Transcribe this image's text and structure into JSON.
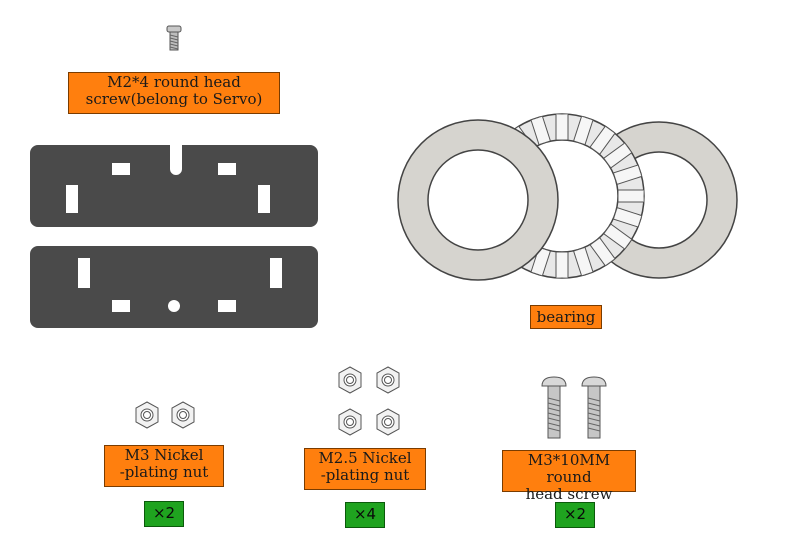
{
  "parts": {
    "servo_screw": {
      "label": "M2*4  round head\nscrew(belong to Servo)"
    },
    "bearing": {
      "label": "bearing"
    },
    "m3_nut": {
      "label": "M3 Nickel\n-plating nut",
      "qty": "×2"
    },
    "m25_nut": {
      "label": "M2.5 Nickel\n-plating nut",
      "qty": "×4"
    },
    "m3_screw": {
      "label": "M3*10MM round\nhead screw",
      "qty": "×2"
    }
  },
  "colors": {
    "label_bg": "#ff7f0e",
    "qty_bg": "#1fa31f",
    "plate": "#4a4a4a",
    "bearing": "#d6d4cf"
  }
}
